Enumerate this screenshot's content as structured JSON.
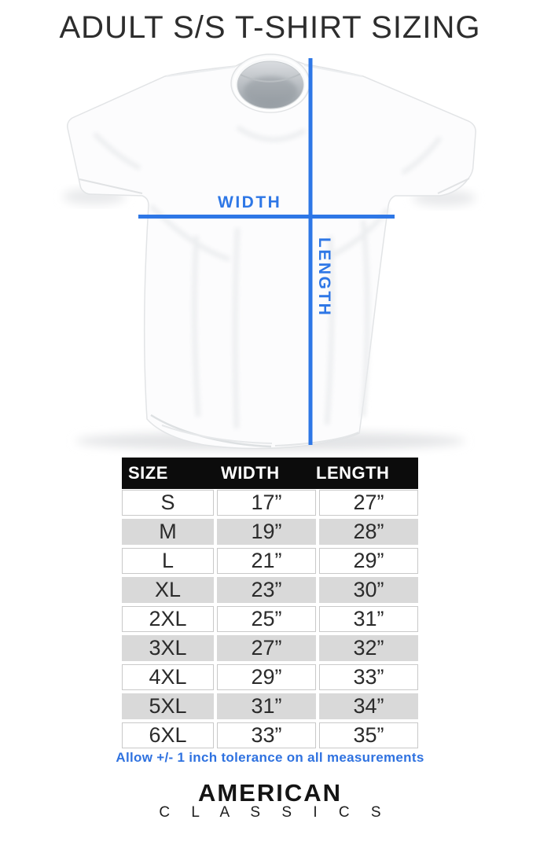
{
  "page": {
    "title": "ADULT S/S T-SHIRT SIZING"
  },
  "diagram": {
    "width_label": "WIDTH",
    "length_label": "LENGTH",
    "line_color": "#2e77e6"
  },
  "size_table": {
    "headers": [
      "SIZE",
      "WIDTH",
      "LENGTH"
    ],
    "rows": [
      {
        "size": "S",
        "width": "17”",
        "length": "27”"
      },
      {
        "size": "M",
        "width": "19”",
        "length": "28”"
      },
      {
        "size": "L",
        "width": "21”",
        "length": "29”"
      },
      {
        "size": "XL",
        "width": "23”",
        "length": "30”"
      },
      {
        "size": "2XL",
        "width": "25”",
        "length": "31”"
      },
      {
        "size": "3XL",
        "width": "27”",
        "length": "32”"
      },
      {
        "size": "4XL",
        "width": "29”",
        "length": "33”"
      },
      {
        "size": "5XL",
        "width": "31”",
        "length": "34”"
      },
      {
        "size": "6XL",
        "width": "33”",
        "length": "35”"
      }
    ]
  },
  "note": "Allow +/- 1 inch tolerance on all measurements",
  "brand": {
    "line1": "AMERICAN",
    "line2": "C L A S S I C S"
  },
  "chart_data": {
    "type": "table",
    "title": "ADULT S/S T-SHIRT SIZING",
    "columns": [
      "SIZE",
      "WIDTH",
      "LENGTH"
    ],
    "units": "inches",
    "rows": [
      [
        "S",
        17,
        27
      ],
      [
        "M",
        19,
        28
      ],
      [
        "L",
        21,
        29
      ],
      [
        "XL",
        23,
        30
      ],
      [
        "2XL",
        25,
        31
      ],
      [
        "3XL",
        27,
        32
      ],
      [
        "4XL",
        29,
        33
      ],
      [
        "5XL",
        31,
        34
      ],
      [
        "6XL",
        33,
        35
      ]
    ],
    "note": "Allow +/- 1 inch tolerance on all measurements"
  }
}
